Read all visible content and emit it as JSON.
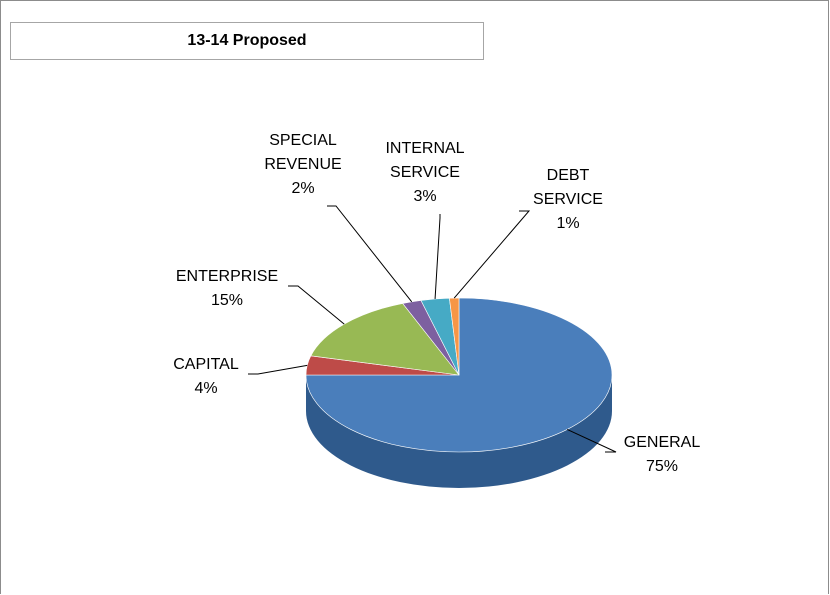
{
  "title": "13-14 Proposed",
  "chart_data": {
    "type": "pie",
    "title": "13-14 Proposed",
    "slices": [
      {
        "name": "GENERAL",
        "value": 75,
        "label_lines": [
          "GENERAL",
          "75%"
        ],
        "color": "#4a7ebb",
        "side_color": "#2f5a8c"
      },
      {
        "name": "CAPITAL",
        "value": 4,
        "label_lines": [
          "CAPITAL",
          "4%"
        ],
        "color": "#be4b48",
        "side_color": "#8b3332"
      },
      {
        "name": "ENTERPRISE",
        "value": 15,
        "label_lines": [
          "ENTERPRISE",
          "15%"
        ],
        "color": "#98b954",
        "side_color": "#6e8a3a"
      },
      {
        "name": "SPECIAL REVENUE",
        "value": 2,
        "label_lines": [
          "SPECIAL",
          "REVENUE",
          "2%"
        ],
        "color": "#7d60a0",
        "side_color": "#594475"
      },
      {
        "name": "INTERNAL SERVICE",
        "value": 3,
        "label_lines": [
          "INTERNAL",
          "SERVICE",
          "3%"
        ],
        "color": "#46aac5",
        "side_color": "#2f7d92"
      },
      {
        "name": "DEBT SERVICE",
        "value": 1,
        "label_lines": [
          "DEBT",
          "SERVICE",
          "1%"
        ],
        "color": "#f79646",
        "side_color": "#b86d2f"
      }
    ],
    "legend": "none",
    "data_labels": "outside with leader lines"
  }
}
